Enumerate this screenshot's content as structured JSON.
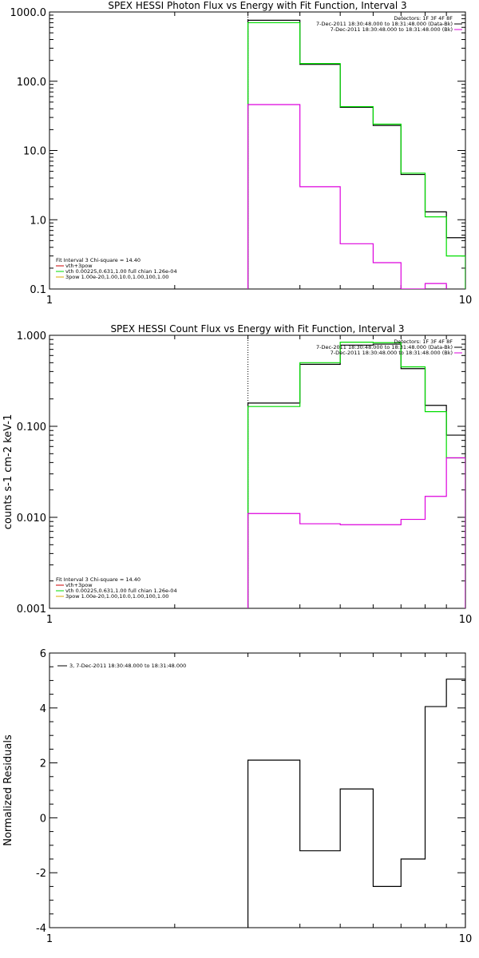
{
  "chart_data": [
    {
      "type": "line",
      "title": "SPEX HESSI Photon Flux vs Energy with Fit Function, Interval 3",
      "ylabel": "",
      "xscale": "log",
      "yscale": "log",
      "xlim": [
        1,
        10
      ],
      "ylim": [
        0.1,
        1000
      ],
      "xtick_labels": [
        "1",
        "10"
      ],
      "ytick_labels": [
        "0.1",
        "1.0",
        "10.0",
        "100.0",
        "1000.0"
      ],
      "ytick_values": [
        0.1,
        1,
        10,
        100,
        1000
      ],
      "legend_topright": [
        "Detectors: 1F 3F 4F 8F",
        "7-Dec-2011 18:30:48.000 to 18:31:48.000 (Data-Bk)",
        "7-Dec-2011 18:30:48.000 to 18:31:48.000 (Bk)"
      ],
      "legend_bottomleft": [
        "Fit Interval 3   Chi-square = 14.40",
        "vth+3pow",
        "vth 0.00225,0.631,1.00   full chian 1.26e-04",
        "3pow 1.00e-20,1.00,10.0,1.00,100,1.00"
      ],
      "vline_x": 3.0,
      "series": [
        {
          "color": "#000000",
          "style": "solid",
          "edges": [
            3.0,
            4.0,
            5.0,
            6.0,
            7.0,
            8.0,
            9.0,
            10.0
          ],
          "values": [
            760,
            175,
            42,
            23,
            4.5,
            1.3,
            0.55
          ]
        },
        {
          "color": "#00dd00",
          "style": "solid",
          "edges": [
            3.0,
            4.0,
            5.0,
            6.0,
            7.0,
            8.0,
            9.0,
            10.0
          ],
          "values": [
            700,
            180,
            43,
            24,
            4.7,
            1.1,
            0.3
          ]
        },
        {
          "color": "#dd00dd",
          "style": "solid",
          "edges": [
            3.0,
            4.0,
            5.0,
            6.0,
            7.0,
            8.0,
            9.0
          ],
          "values": [
            46,
            3.0,
            0.45,
            0.24,
            0.1,
            0.12
          ]
        }
      ]
    },
    {
      "type": "line",
      "title": "SPEX HESSI Count Flux vs Energy with Fit Function, Interval 3",
      "ylabel": "counts s-1 cm-2 keV-1",
      "xscale": "log",
      "yscale": "log",
      "xlim": [
        1,
        10
      ],
      "ylim": [
        0.001,
        1
      ],
      "xtick_labels": [
        "1",
        "10"
      ],
      "ytick_labels": [
        "0.001",
        "0.010",
        "0.100",
        "1.000"
      ],
      "ytick_values": [
        0.001,
        0.01,
        0.1,
        1
      ],
      "legend_topright": [
        "Detectors: 1F 3F 4F 8F",
        "7-Dec-2011 18:30:48.000 to 18:31:48.000 (Data-Bk)",
        "7-Dec-2011 18:30:48.000 to 18:31:48.000 (Bk)"
      ],
      "legend_bottomleft": [
        "Fit Interval 3   Chi-square = 14.40",
        "vth+3pow",
        "vth 0.00225,0.631,1.00   full chian 1.26e-04",
        "3pow 1.00e-20,1.00,10.0,1.00,100,1.00"
      ],
      "vline_x": 3.0,
      "series": [
        {
          "color": "#000000",
          "style": "solid",
          "edges": [
            3.0,
            4.0,
            5.0,
            6.0,
            7.0,
            8.0,
            9.0,
            10.0
          ],
          "values": [
            0.18,
            0.48,
            0.78,
            0.8,
            0.43,
            0.17,
            0.08
          ]
        },
        {
          "color": "#00dd00",
          "style": "solid",
          "edges": [
            3.0,
            4.0,
            5.0,
            6.0,
            7.0,
            8.0,
            9.0,
            10.0
          ],
          "values": [
            0.165,
            0.5,
            0.84,
            0.83,
            0.45,
            0.145,
            0.045
          ]
        },
        {
          "color": "#dd00dd",
          "style": "solid",
          "edges": [
            3.0,
            4.0,
            5.0,
            6.0,
            7.0,
            8.0,
            9.0,
            10.0
          ],
          "values": [
            0.011,
            0.0085,
            0.0083,
            0.0083,
            0.0095,
            0.017,
            0.045
          ]
        }
      ]
    },
    {
      "type": "line",
      "title": "",
      "ylabel": "Normalized Residuals",
      "xscale": "log",
      "yscale": "linear",
      "xlim": [
        1,
        10
      ],
      "ylim": [
        -4,
        6
      ],
      "xtick_labels": [
        "1",
        "10"
      ],
      "ytick_labels": [
        "-4",
        "-2",
        "0",
        "2",
        "4",
        "6"
      ],
      "ytick_values": [
        -4,
        -2,
        0,
        2,
        4,
        6
      ],
      "legend_topright": [],
      "legend_bottomleft": [],
      "legend_topleft": [
        "3,  7-Dec-2011 18:30:48.000 to 18:31:48.000"
      ],
      "series": [
        {
          "color": "#000000",
          "style": "solid",
          "edges": [
            3.0,
            4.0,
            5.0,
            6.0,
            7.0,
            8.0,
            9.0,
            10.0
          ],
          "values": [
            2.1,
            -1.2,
            1.05,
            -2.5,
            -1.5,
            4.05,
            5.05
          ]
        }
      ]
    }
  ]
}
